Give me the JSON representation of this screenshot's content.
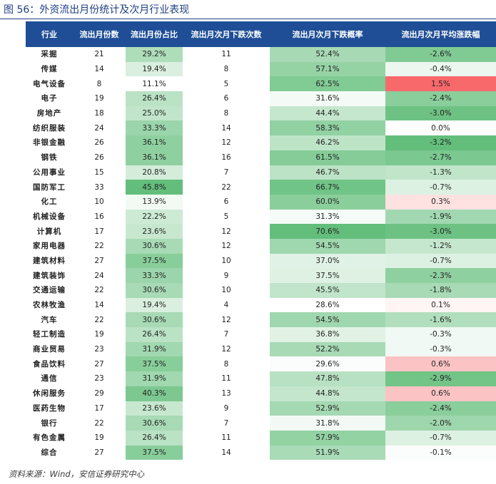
{
  "title": "图 56：外资流出月份统计及次月行业表现",
  "columns": [
    "行业",
    "流出月份数",
    "流出月份占比",
    "流出月次月下跌次数",
    "流出月次月下跌概率",
    "流出月次月平均涨跌幅"
  ],
  "rows": [
    {
      "industry": "采掘",
      "months": "21",
      "ratio": "29.2%",
      "down": "11",
      "prob": "52.4%",
      "avg": "-2.6%"
    },
    {
      "industry": "传媒",
      "months": "14",
      "ratio": "19.4%",
      "down": "8",
      "prob": "57.1%",
      "avg": "-0.4%"
    },
    {
      "industry": "电气设备",
      "months": "8",
      "ratio": "11.1%",
      "down": "5",
      "prob": "62.5%",
      "avg": "1.5%"
    },
    {
      "industry": "电子",
      "months": "19",
      "ratio": "26.4%",
      "down": "6",
      "prob": "31.6%",
      "avg": "-2.4%"
    },
    {
      "industry": "房地产",
      "months": "18",
      "ratio": "25.0%",
      "down": "8",
      "prob": "44.4%",
      "avg": "-3.0%"
    },
    {
      "industry": "纺织服装",
      "months": "24",
      "ratio": "33.3%",
      "down": "14",
      "prob": "58.3%",
      "avg": "0.0%"
    },
    {
      "industry": "非银金融",
      "months": "26",
      "ratio": "36.1%",
      "down": "12",
      "prob": "46.2%",
      "avg": "-3.2%"
    },
    {
      "industry": "钢铁",
      "months": "26",
      "ratio": "36.1%",
      "down": "16",
      "prob": "61.5%",
      "avg": "-2.7%"
    },
    {
      "industry": "公用事业",
      "months": "15",
      "ratio": "20.8%",
      "down": "7",
      "prob": "46.7%",
      "avg": "-1.3%"
    },
    {
      "industry": "国防军工",
      "months": "33",
      "ratio": "45.8%",
      "down": "22",
      "prob": "66.7%",
      "avg": "-0.7%"
    },
    {
      "industry": "化工",
      "months": "10",
      "ratio": "13.9%",
      "down": "6",
      "prob": "60.0%",
      "avg": "0.3%"
    },
    {
      "industry": "机械设备",
      "months": "16",
      "ratio": "22.2%",
      "down": "5",
      "prob": "31.3%",
      "avg": "-1.9%"
    },
    {
      "industry": "计算机",
      "months": "17",
      "ratio": "23.6%",
      "down": "12",
      "prob": "70.6%",
      "avg": "-3.0%"
    },
    {
      "industry": "家用电器",
      "months": "22",
      "ratio": "30.6%",
      "down": "12",
      "prob": "54.5%",
      "avg": "-1.2%"
    },
    {
      "industry": "建筑材料",
      "months": "27",
      "ratio": "37.5%",
      "down": "10",
      "prob": "37.0%",
      "avg": "-0.7%"
    },
    {
      "industry": "建筑装饰",
      "months": "24",
      "ratio": "33.3%",
      "down": "9",
      "prob": "37.5%",
      "avg": "-2.3%"
    },
    {
      "industry": "交通运输",
      "months": "22",
      "ratio": "30.6%",
      "down": "10",
      "prob": "45.5%",
      "avg": "-1.8%"
    },
    {
      "industry": "农林牧渔",
      "months": "14",
      "ratio": "19.4%",
      "down": "4",
      "prob": "28.6%",
      "avg": "0.1%"
    },
    {
      "industry": "汽车",
      "months": "22",
      "ratio": "30.6%",
      "down": "12",
      "prob": "54.5%",
      "avg": "-1.6%"
    },
    {
      "industry": "轻工制造",
      "months": "19",
      "ratio": "26.4%",
      "down": "7",
      "prob": "36.8%",
      "avg": "-0.3%"
    },
    {
      "industry": "商业贸易",
      "months": "23",
      "ratio": "31.9%",
      "down": "12",
      "prob": "52.2%",
      "avg": "-0.3%"
    },
    {
      "industry": "食品饮料",
      "months": "27",
      "ratio": "37.5%",
      "down": "8",
      "prob": "29.6%",
      "avg": "0.6%"
    },
    {
      "industry": "通信",
      "months": "23",
      "ratio": "31.9%",
      "down": "11",
      "prob": "47.8%",
      "avg": "-2.9%"
    },
    {
      "industry": "休闲服务",
      "months": "29",
      "ratio": "40.3%",
      "down": "13",
      "prob": "44.8%",
      "avg": "0.6%"
    },
    {
      "industry": "医药生物",
      "months": "17",
      "ratio": "23.6%",
      "down": "9",
      "prob": "52.9%",
      "avg": "-2.4%"
    },
    {
      "industry": "银行",
      "months": "22",
      "ratio": "30.6%",
      "down": "7",
      "prob": "31.8%",
      "avg": "-2.0%"
    },
    {
      "industry": "有色金属",
      "months": "19",
      "ratio": "26.4%",
      "down": "11",
      "prob": "57.9%",
      "avg": "-0.7%"
    },
    {
      "industry": "综合",
      "months": "27",
      "ratio": "37.5%",
      "down": "14",
      "prob": "51.9%",
      "avg": "-0.1%"
    }
  ],
  "source": "资料来源：Wind，安信证券研究中心",
  "colors": {
    "header_bg": "#1f4e96",
    "header_text": "#ffffff",
    "title_text": "#1f3f84",
    "scale_green": "#63be7b",
    "scale_white": "#ffffff",
    "scale_red": "#f8696b"
  }
}
